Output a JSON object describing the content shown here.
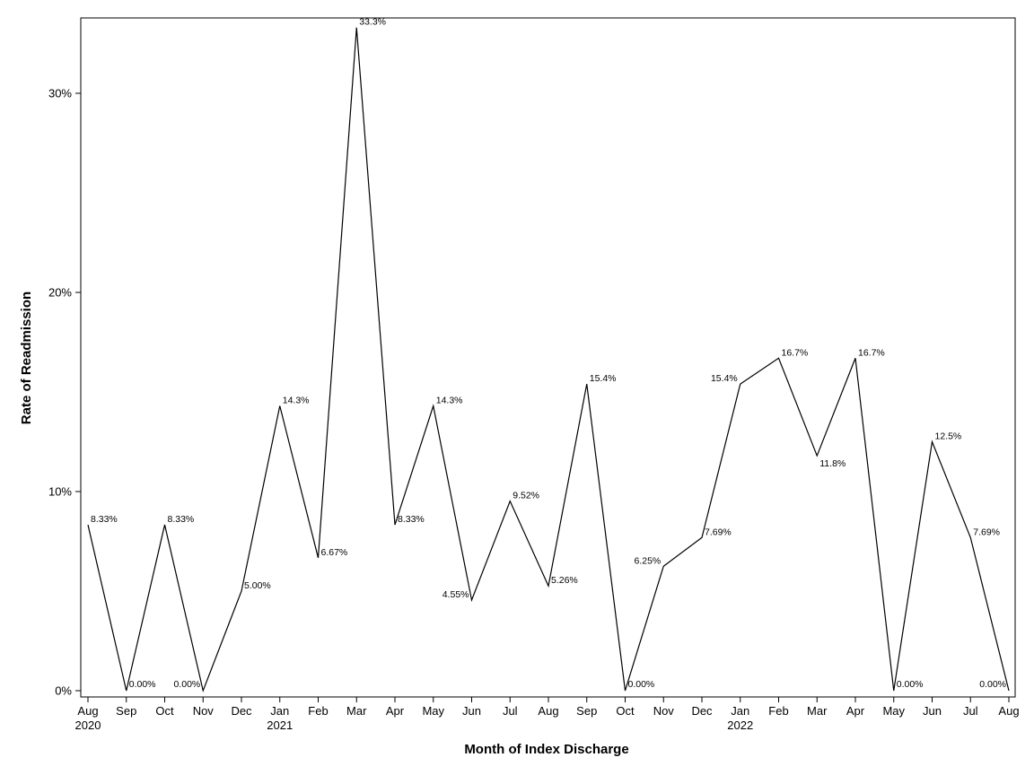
{
  "chart_data": {
    "type": "line",
    "xlabel": "Month of Index Discharge",
    "ylabel": "Rate of Readmission",
    "ylim": [
      0,
      33.3
    ],
    "yticks": [
      {
        "value": 0,
        "label": "0%"
      },
      {
        "value": 10,
        "label": "10%"
      },
      {
        "value": 20,
        "label": "20%"
      },
      {
        "value": 30,
        "label": "30%"
      }
    ],
    "grid": false,
    "legend": "none",
    "line_color": "#000000",
    "x": [
      {
        "month": "Aug",
        "year": "2020"
      },
      {
        "month": "Sep",
        "year": ""
      },
      {
        "month": "Oct",
        "year": ""
      },
      {
        "month": "Nov",
        "year": ""
      },
      {
        "month": "Dec",
        "year": ""
      },
      {
        "month": "Jan",
        "year": "2021"
      },
      {
        "month": "Feb",
        "year": ""
      },
      {
        "month": "Mar",
        "year": ""
      },
      {
        "month": "Apr",
        "year": ""
      },
      {
        "month": "May",
        "year": ""
      },
      {
        "month": "Jun",
        "year": ""
      },
      {
        "month": "Jul",
        "year": ""
      },
      {
        "month": "Aug",
        "year": ""
      },
      {
        "month": "Sep",
        "year": ""
      },
      {
        "month": "Oct",
        "year": ""
      },
      {
        "month": "Nov",
        "year": ""
      },
      {
        "month": "Dec",
        "year": ""
      },
      {
        "month": "Jan",
        "year": "2022"
      },
      {
        "month": "Feb",
        "year": ""
      },
      {
        "month": "Mar",
        "year": ""
      },
      {
        "month": "Apr",
        "year": ""
      },
      {
        "month": "May",
        "year": ""
      },
      {
        "month": "Jun",
        "year": ""
      },
      {
        "month": "Jul",
        "year": ""
      },
      {
        "month": "Aug",
        "year": ""
      }
    ],
    "values": [
      8.33,
      0,
      8.33,
      0,
      5.0,
      14.3,
      6.67,
      33.3,
      8.33,
      14.3,
      4.55,
      9.52,
      5.26,
      15.4,
      0,
      6.25,
      7.69,
      15.4,
      16.7,
      11.8,
      16.7,
      0,
      12.5,
      7.69,
      0
    ],
    "labels": [
      "8.33%",
      "0.00%",
      "8.33%",
      "0.00%",
      "5.00%",
      "14.3%",
      "6.67%",
      "33.3%",
      "8.33%",
      "14.3%",
      "4.55%",
      "9.52%",
      "5.26%",
      "15.4%",
      "0.00%",
      "6.25%",
      "7.69%",
      "15.4%",
      "16.7%",
      "11.8%",
      "16.7%",
      "0.00%",
      "12.5%",
      "7.69%",
      "0.00%"
    ],
    "label_placement": [
      "right",
      "right",
      "right",
      "left",
      "right",
      "right",
      "right",
      "right",
      "right",
      "right",
      "left",
      "right",
      "right",
      "right",
      "right",
      "left",
      "right",
      "left",
      "right",
      "right-below",
      "right",
      "right",
      "right",
      "right",
      "left"
    ]
  }
}
